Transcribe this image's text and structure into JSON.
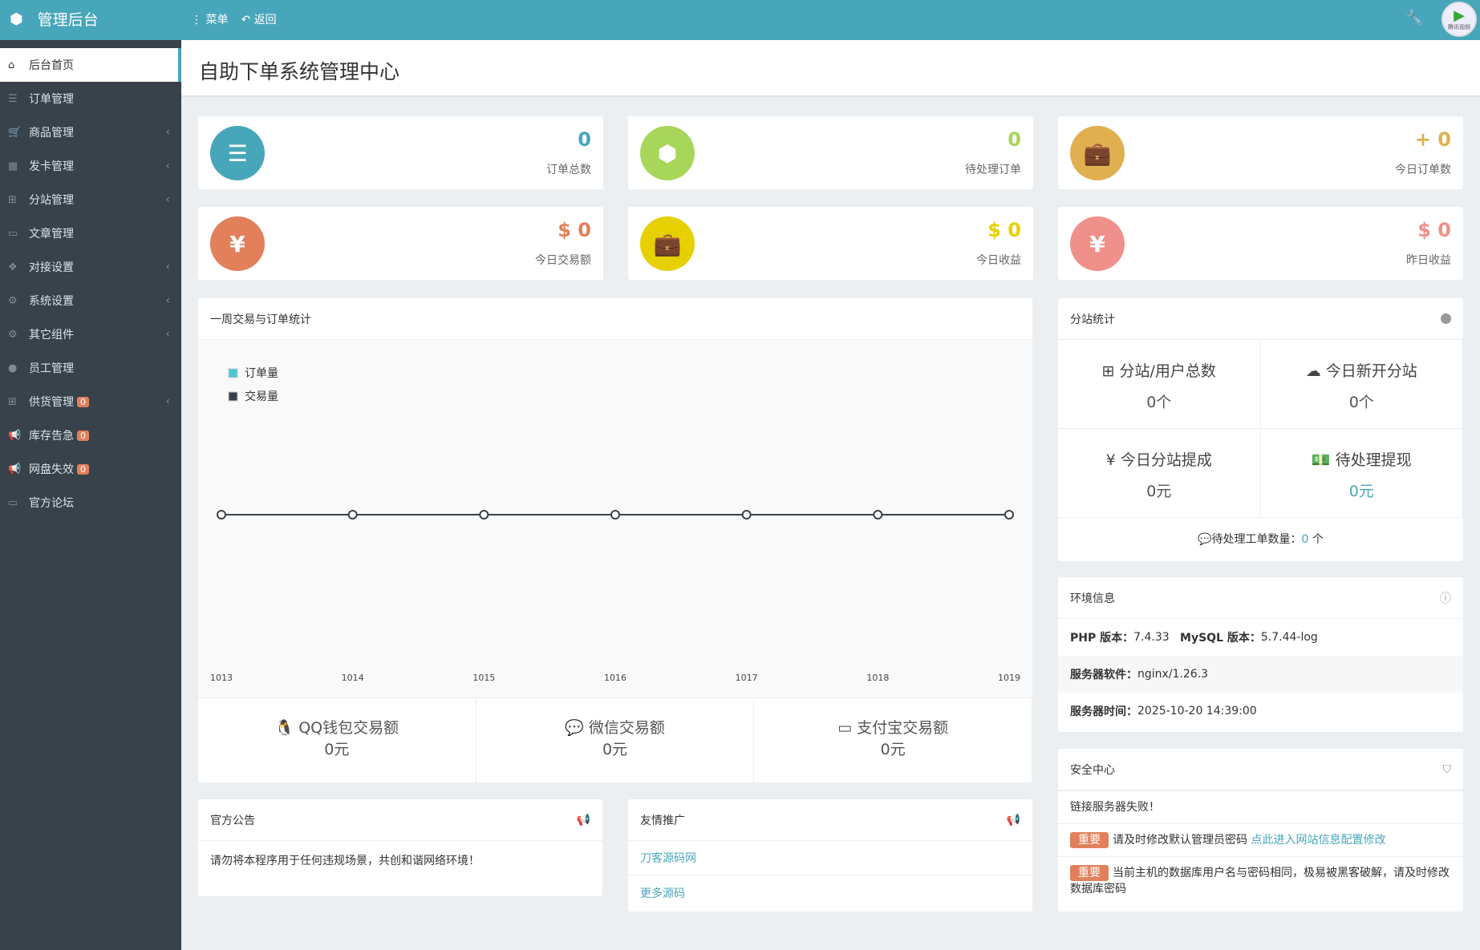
{
  "topbar": {
    "brand": "管理后台",
    "menu": "菜单",
    "back": "返回",
    "avatar_text": "腾讯视频"
  },
  "sidebar": {
    "items": [
      {
        "label": "后台首页",
        "icon": "home-icon",
        "active": true
      },
      {
        "label": "订单管理",
        "icon": "list-icon"
      },
      {
        "label": "商品管理",
        "icon": "cart-icon",
        "chevron": true
      },
      {
        "label": "发卡管理",
        "icon": "grid-icon",
        "chevron": true
      },
      {
        "label": "分站管理",
        "icon": "sitemap-icon",
        "chevron": true
      },
      {
        "label": "文章管理",
        "icon": "book-icon"
      },
      {
        "label": "对接设置",
        "icon": "cubes-icon",
        "chevron": true
      },
      {
        "label": "系统设置",
        "icon": "gear-icon",
        "chevron": true
      },
      {
        "label": "其它组件",
        "icon": "gears-icon",
        "chevron": true
      },
      {
        "label": "员工管理",
        "icon": "user-icon"
      },
      {
        "label": "供货管理",
        "icon": "sitemap-icon",
        "badge": "0",
        "chevron": true
      },
      {
        "label": "库存告急",
        "icon": "bullhorn-icon",
        "badge": "0"
      },
      {
        "label": "网盘失效",
        "icon": "bullhorn-icon",
        "badge": "0"
      },
      {
        "label": "官方论坛",
        "icon": "book-icon"
      }
    ]
  },
  "page_title": "自助下单系统管理中心",
  "stats": [
    {
      "value": "0",
      "label": "订单总数",
      "color": "#48a6bb",
      "icon": "ordered-list-icon"
    },
    {
      "value": "0",
      "label": "待处理订单",
      "color": "#a8d65a",
      "icon": "hexagon-icon"
    },
    {
      "value": "+ 0",
      "label": "今日订单数",
      "color": "#e0b050",
      "icon": "briefcase-icon"
    },
    {
      "value": "$ 0",
      "label": "今日交易额",
      "color": "#e1805b",
      "icon": "yen-icon"
    },
    {
      "value": "$ 0",
      "label": "今日收益",
      "color": "#e6d000",
      "icon": "briefcase-icon"
    },
    {
      "value": "$ 0",
      "label": "昨日收益",
      "color": "#f0908a",
      "icon": "yen-icon"
    }
  ],
  "chart_panel": {
    "title": "一周交易与订单统计"
  },
  "chart_data": {
    "type": "line",
    "categories": [
      "1013",
      "1014",
      "1015",
      "1016",
      "1017",
      "1018",
      "1019"
    ],
    "series": [
      {
        "name": "订单量",
        "values": [
          0,
          0,
          0,
          0,
          0,
          0,
          0
        ],
        "color": "#4cc5d6"
      },
      {
        "name": "交易量",
        "values": [
          0,
          0,
          0,
          0,
          0,
          0,
          0
        ],
        "color": "#37424b"
      }
    ],
    "legend": "top-left",
    "grid": false
  },
  "pay": [
    {
      "label": "QQ钱包交易额",
      "value": "0元",
      "icon": "qq-icon"
    },
    {
      "label": "微信交易额",
      "value": "0元",
      "icon": "wechat-icon"
    },
    {
      "label": "支付宝交易额",
      "value": "0元",
      "icon": "credit-card-icon"
    }
  ],
  "substation": {
    "title": "分站统计",
    "cells": [
      {
        "label": "分站/用户总数",
        "value": "0个",
        "icon": "sitemap-icon"
      },
      {
        "label": "今日新开分站",
        "value": "0个",
        "icon": "cloud-icon"
      },
      {
        "label": "今日分站提成",
        "value": "0元",
        "icon": "yen-icon"
      },
      {
        "label": "待处理提现",
        "value": "0元",
        "icon": "money-icon"
      }
    ],
    "tickets_label": "待处理工单数量：",
    "tickets_value": "0",
    "tickets_unit": "个"
  },
  "env": {
    "title": "环境信息",
    "php_label": "PHP 版本：",
    "php": "7.4.33",
    "mysql_label": "MySQL 版本：",
    "mysql": "5.7.44-log",
    "server_label": "服务器软件：",
    "server": "nginx/1.26.3",
    "time_label": "服务器时间：",
    "time": "2025-10-20 14:39:00"
  },
  "security": {
    "title": "安全中心",
    "status": "链接服务器失败！",
    "tag": "重要",
    "msg1": "请及时修改默认管理员密码",
    "link1": "点此进入网站信息配置修改",
    "msg2": "当前主机的数据库用户名与密码相同，极易被黑客破解，请及时修改数据库密码"
  },
  "notice": {
    "title": "官方公告",
    "text": "请勿将本程序用于任何违规场景，共创和谐网络环境！"
  },
  "promo": {
    "title": "友情推广",
    "links": [
      "刀客源码网",
      "更多源码"
    ]
  }
}
